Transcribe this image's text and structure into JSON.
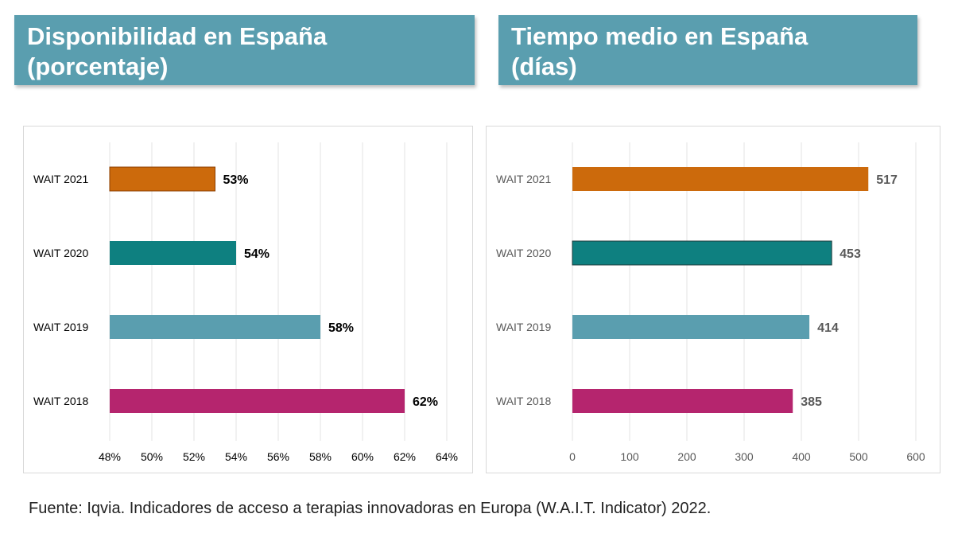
{
  "chart_data": [
    {
      "type": "bar",
      "orientation": "horizontal",
      "title": "Disponibilidad en España (porcentaje)",
      "title_lines": [
        "Disponibilidad en España",
        "(porcentaje)"
      ],
      "categories": [
        "WAIT 2021",
        "WAIT 2020",
        "WAIT 2019",
        "WAIT 2018"
      ],
      "values": [
        53,
        54,
        58,
        62
      ],
      "value_labels": [
        "53%",
        "54%",
        "58%",
        "62%"
      ],
      "colors": [
        "#cc6a0c",
        "#0e8080",
        "#5a9eaf",
        "#b5256e"
      ],
      "xlim": [
        48,
        64
      ],
      "xticks": [
        48,
        50,
        52,
        54,
        56,
        58,
        60,
        62,
        64
      ],
      "xtick_labels": [
        "48%",
        "50%",
        "52%",
        "54%",
        "56%",
        "58%",
        "60%",
        "62%",
        "64%"
      ],
      "grid": true,
      "label_color": "#000000"
    },
    {
      "type": "bar",
      "orientation": "horizontal",
      "title": "Tiempo medio en España (días)",
      "title_lines": [
        "Tiempo medio en España",
        "(días)"
      ],
      "categories": [
        "WAIT 2021",
        "WAIT 2020",
        "WAIT 2019",
        "WAIT 2018"
      ],
      "values": [
        517,
        453,
        414,
        385
      ],
      "value_labels": [
        "517",
        "453",
        "414",
        "385"
      ],
      "colors": [
        "#cc6a0c",
        "#0e8080",
        "#5a9eaf",
        "#b5256e"
      ],
      "xlim": [
        0,
        600
      ],
      "xticks": [
        0,
        100,
        200,
        300,
        400,
        500,
        600
      ],
      "xtick_labels": [
        "0",
        "100",
        "200",
        "300",
        "400",
        "500",
        "600"
      ],
      "grid": true,
      "label_color": "#595959"
    }
  ],
  "source": "Fuente: Iqvia. Indicadores de acceso a terapias innovadoras en Europa (W.A.I.T. Indicator) 2022."
}
